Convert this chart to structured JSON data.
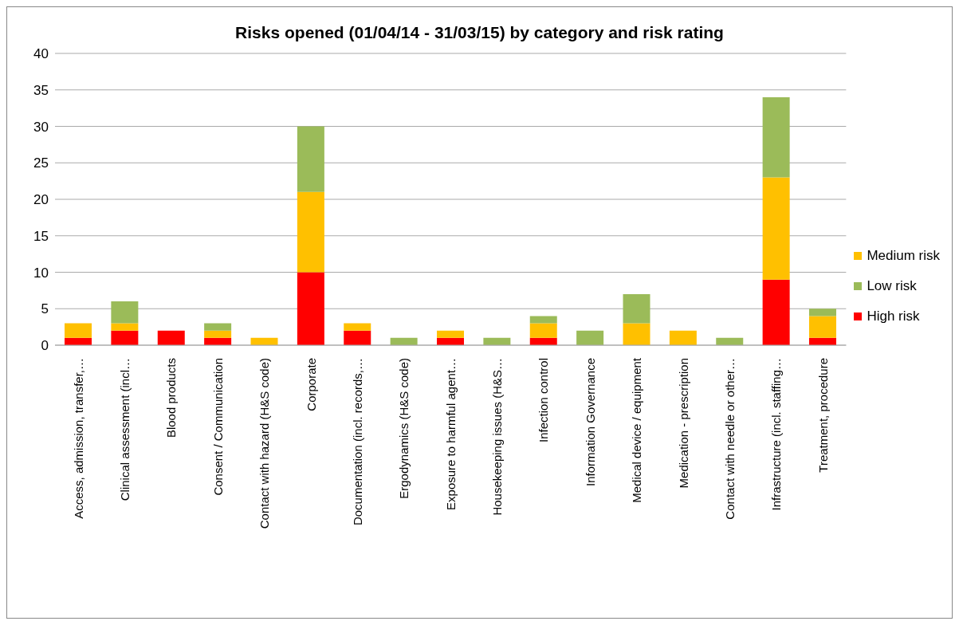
{
  "chart_data": {
    "type": "bar",
    "title": "Risks opened (01/04/14 - 31/03/15) by category and risk rating",
    "stacked": true,
    "categories": [
      "Access, admission, transfer,…",
      "Clinical assessment (incl…",
      "Blood products",
      "Consent / Communication",
      "Contact with hazard (H&S code)",
      "Corporate",
      "Documentation (incl. records,…",
      "Ergodynamics (H&S code)",
      "Exposure to harmful agent…",
      "Housekeeping issues (H&S…",
      "Infection control",
      "Information Governance",
      "Medical device / equipment",
      "Medication - prescription",
      "Contact with needle or other…",
      "Infrastructure (incl. staffing…",
      "Treatment, procedure"
    ],
    "series": [
      {
        "name": "High risk",
        "color": "#ff0000",
        "values": [
          1,
          2,
          2,
          1,
          0,
          10,
          2,
          0,
          1,
          0,
          1,
          0,
          0,
          0,
          0,
          9,
          1
        ]
      },
      {
        "name": "Medium risk",
        "color": "#ffc000",
        "values": [
          2,
          1,
          0,
          1,
          1,
          11,
          1,
          0,
          1,
          0,
          2,
          0,
          3,
          2,
          0,
          14,
          3
        ]
      },
      {
        "name": "Low risk",
        "color": "#9bbb59",
        "values": [
          0,
          3,
          0,
          1,
          0,
          9,
          0,
          1,
          0,
          1,
          1,
          2,
          4,
          0,
          1,
          11,
          1
        ]
      }
    ],
    "ylim": [
      0,
      40
    ],
    "yticks": [
      0,
      5,
      10,
      15,
      20,
      25,
      30,
      35,
      40
    ],
    "grid": "y",
    "legend": "right"
  }
}
